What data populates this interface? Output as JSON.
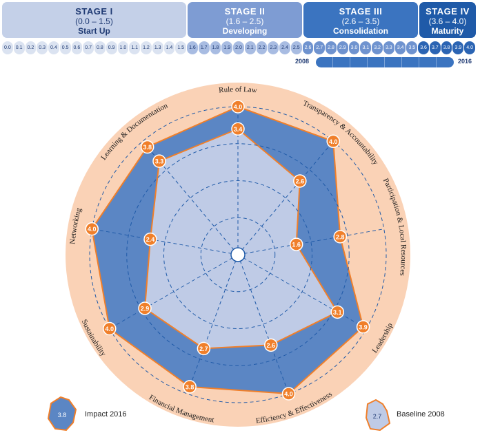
{
  "stages": [
    {
      "title": "STAGE I",
      "range": "(0.0 – 1.5)",
      "name": "Start Up"
    },
    {
      "title": "STAGE II",
      "range": "(1.6 – 2.5)",
      "name": "Developing"
    },
    {
      "title": "STAGE III",
      "range": "(2.6 – 3.5)",
      "name": "Consolidation"
    },
    {
      "title": "STAGE IV",
      "range": "(3.6 – 4.0)",
      "name": "Maturity"
    }
  ],
  "scale_ticks": [
    "0.0",
    "0.1",
    "0.2",
    "0.3",
    "0.4",
    "0.5",
    "0.6",
    "0.7",
    "0.8",
    "0.9",
    "1.0",
    "1.1",
    "1.2",
    "1.3",
    "1.4",
    "1.5",
    "1.6",
    "1.7",
    "1.8",
    "1.9",
    "2.0",
    "2.1",
    "2.2",
    "2.3",
    "2.4",
    "2.5",
    "2.6",
    "2.7",
    "2.8",
    "2.9",
    "3.0",
    "3.1",
    "3.2",
    "3.3",
    "3.4",
    "3.5",
    "3.6",
    "3.7",
    "3.8",
    "3.9",
    "4.0"
  ],
  "year_bar": {
    "start": "2008",
    "end": "2016"
  },
  "colors": {
    "stage1": "#c4d0e8",
    "stage2": "#7e9cd3",
    "stage3": "#3b74c0",
    "stage4": "#1f5aa8",
    "impact": "#5b86c4",
    "baseline": "#bfcbe6",
    "outer": "#fad2b6",
    "marker": "#f07f2a",
    "grid": "#1f5aa8"
  },
  "legend": {
    "impact": {
      "value": "3.8",
      "label": "Impact 2016"
    },
    "baseline": {
      "value": "2.7",
      "label": "Baseline 2008"
    }
  },
  "chart_data": {
    "type": "radar",
    "range": [
      0,
      4.0
    ],
    "categories": [
      "Rule of Law",
      "Transparency & Accountability",
      "Participation & Local Resources",
      "Leadership",
      "Efficiency & Effectiveness",
      "Financial Management",
      "Sustainability",
      "Networking",
      "Learning & Documentation"
    ],
    "series": [
      {
        "name": "Impact 2016",
        "values": [
          4.0,
          4.0,
          2.8,
          3.9,
          4.0,
          3.8,
          4.0,
          4.0,
          3.8
        ]
      },
      {
        "name": "Baseline 2008",
        "values": [
          3.4,
          2.6,
          1.6,
          3.1,
          2.6,
          2.7,
          2.9,
          2.4,
          3.3
        ]
      }
    ]
  }
}
